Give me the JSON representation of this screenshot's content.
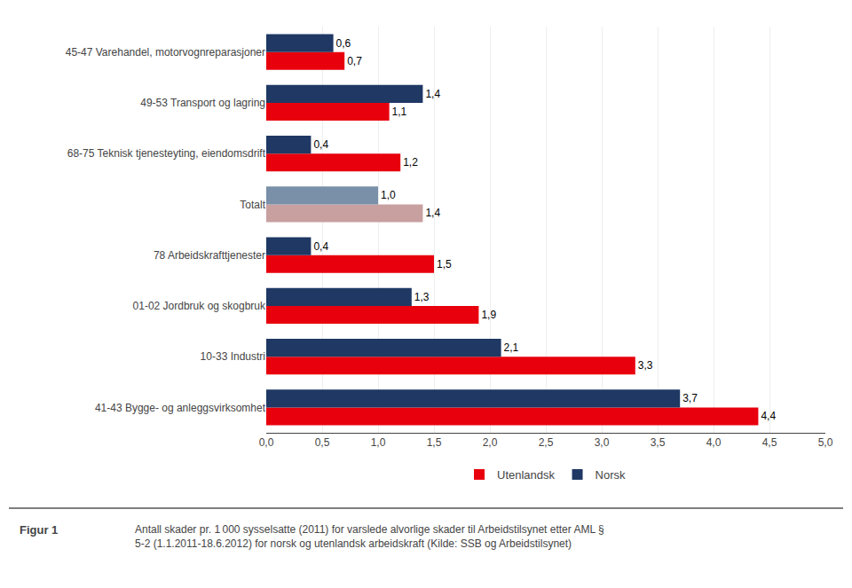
{
  "chart_data": {
    "type": "bar",
    "orientation": "horizontal",
    "categories": [
      "45-47 Varehandel, motorvognreparasjoner",
      "49-53 Transport og lagring",
      "68-75 Teknisk tjenesteyting, eiendomsdrift",
      "Totalt",
      "78 Arbeidskrafttjenester",
      "01-02 Jordbruk og skogbruk",
      "10-33 Industri",
      "41-43 Bygge- og anleggsvirksomhet"
    ],
    "series": [
      {
        "name": "Utenlandsk",
        "colors": [
          "#e8000d",
          "#e8000d",
          "#e8000d",
          "#c8a0a0",
          "#e8000d",
          "#e8000d",
          "#e8000d",
          "#e8000d"
        ],
        "values": [
          0.7,
          1.1,
          1.2,
          1.4,
          1.5,
          1.9,
          3.3,
          4.4
        ],
        "value_labels": [
          "0,7",
          "1,1",
          "1,2",
          "1,4",
          "1,5",
          "1,9",
          "3,3",
          "4,4"
        ]
      },
      {
        "name": "Norsk",
        "colors": [
          "#1f3864",
          "#1f3864",
          "#1f3864",
          "#7a8fa8",
          "#1f3864",
          "#1f3864",
          "#1f3864",
          "#1f3864"
        ],
        "values": [
          0.6,
          1.4,
          0.4,
          1.0,
          0.4,
          1.3,
          2.1,
          3.7
        ],
        "value_labels": [
          "0,6",
          "1,4",
          "0,4",
          "1,0",
          "0,4",
          "1,3",
          "2,1",
          "3,7"
        ]
      }
    ],
    "xlim": [
      0,
      5.0
    ],
    "xticks": [
      {
        "value": 0.0,
        "label": "0,0"
      },
      {
        "value": 0.5,
        "label": "0,5"
      },
      {
        "value": 1.0,
        "label": "1,0"
      },
      {
        "value": 1.5,
        "label": "1,5"
      },
      {
        "value": 2.0,
        "label": "2,0"
      },
      {
        "value": 2.5,
        "label": "2,5"
      },
      {
        "value": 3.0,
        "label": "3,0"
      },
      {
        "value": 3.5,
        "label": "3,5"
      },
      {
        "value": 4.0,
        "label": "4,0"
      },
      {
        "value": 4.5,
        "label": "4,5"
      },
      {
        "value": 5.0,
        "label": "5,0"
      }
    ],
    "grid": true,
    "legend": "lower center",
    "data_labels": true,
    "annotations": [
      "Figur 1",
      "Antall skader pr. 1 000 sysselsatte (2011) for varslede alvorlige skader til Arbeidstilsynet etter AML §\n5-2 (1.1.2011-18.6.2012) for norsk og utenlandsk arbeidskraft (Kilde: SSB og Arbeidstilsynet)"
    ]
  }
}
